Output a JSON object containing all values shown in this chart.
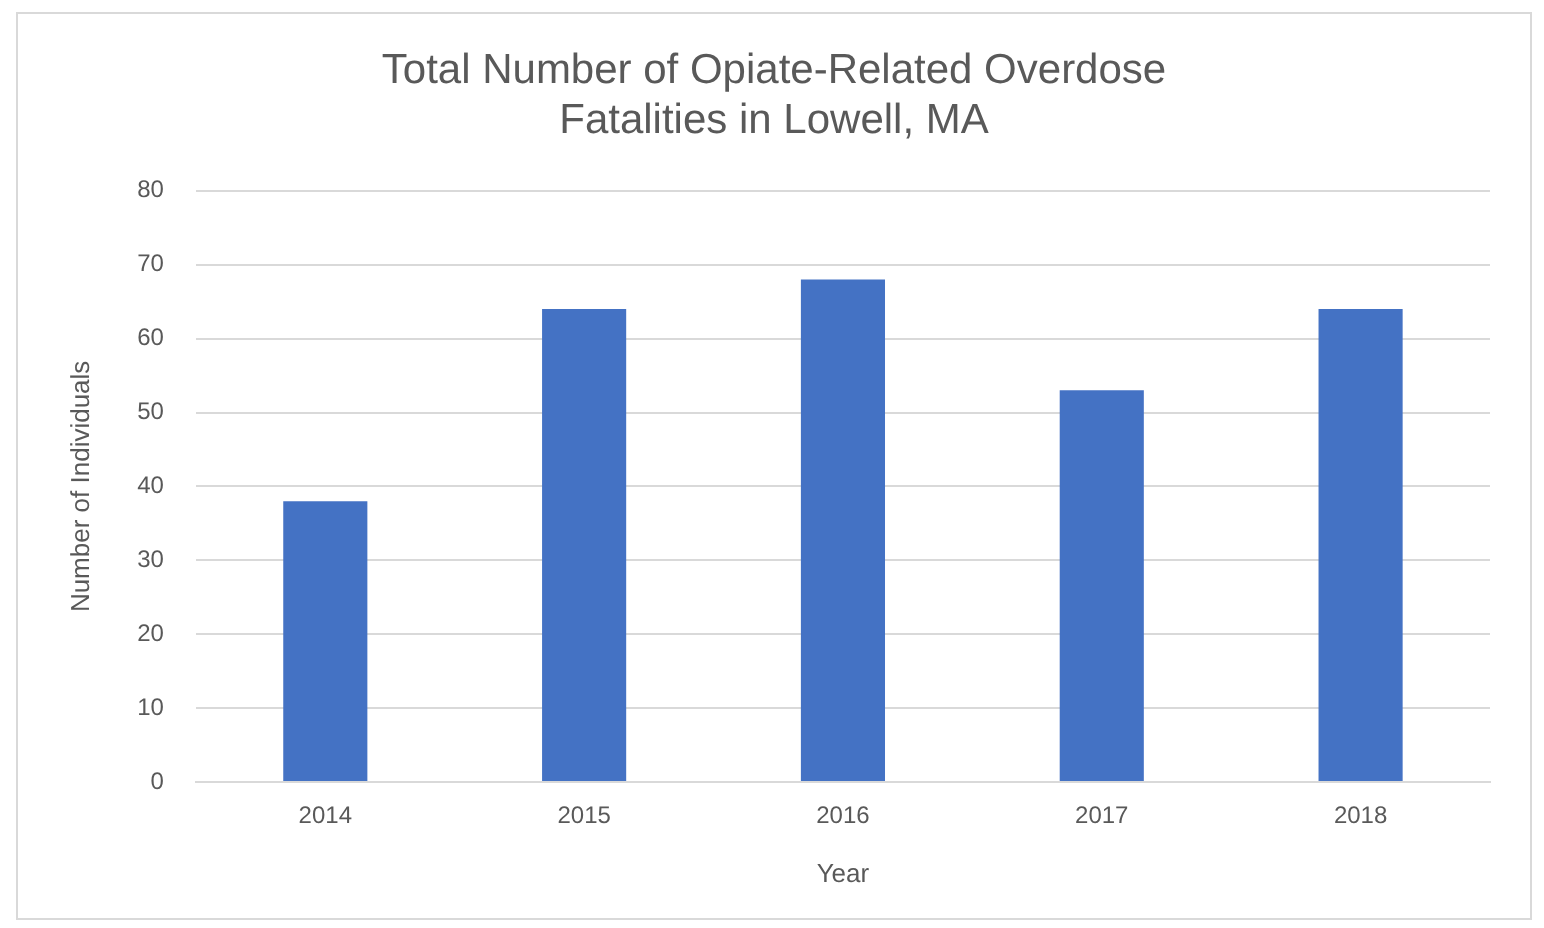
{
  "chart_data": {
    "type": "bar",
    "title": [
      "Total Number of Opiate-Related Overdose",
      "Fatalities in Lowell, MA"
    ],
    "xlabel": "Year",
    "ylabel": "Number of Individuals",
    "categories": [
      "2014",
      "2015",
      "2016",
      "2017",
      "2018"
    ],
    "values": [
      38,
      64,
      68,
      53,
      64
    ],
    "color": "#4472c4",
    "ylim": [
      0,
      80
    ],
    "yticks": [
      0,
      10,
      20,
      30,
      40,
      50,
      60,
      70,
      80
    ],
    "grid": "y"
  }
}
